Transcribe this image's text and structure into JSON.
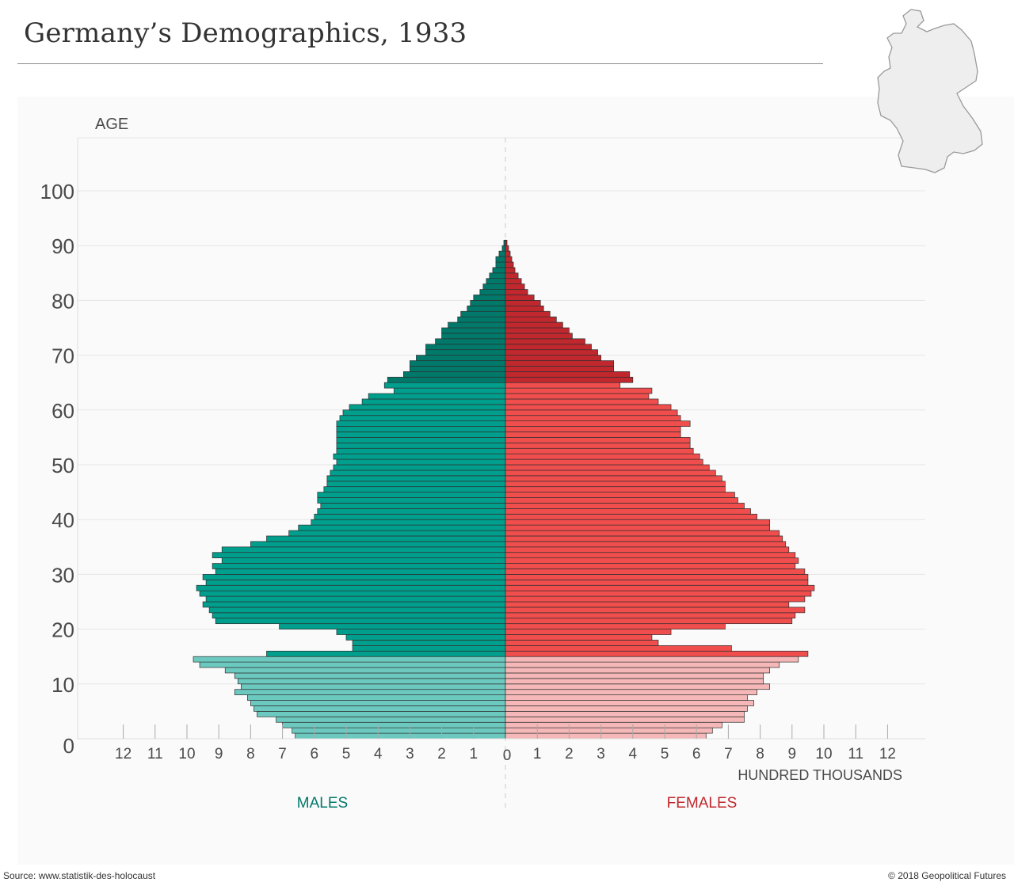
{
  "title": "Germany’s Demographics, 1933",
  "source": "Source: www.statistik-des-holocaust",
  "credit": "© 2018 Geopolitical Futures",
  "colors": {
    "male_old": "#00796b",
    "male_mid": "#009e8c",
    "male_young": "#6cc9bf",
    "female_old": "#c0282e",
    "female_mid": "#f04d4d",
    "female_young": "#f5b7b7",
    "map_fill": "#eeeeee",
    "map_stroke": "#9a9a9a"
  },
  "icons": {
    "map": "germany-outline-icon"
  },
  "chart_data": {
    "type": "bar",
    "orientation": "horizontal-population-pyramid",
    "title": "Germany’s Demographics, 1933",
    "ylabel": "AGE",
    "xlabel": "HUNDRED THOUSANDS",
    "y_ticks": [
      0,
      10,
      20,
      30,
      40,
      50,
      60,
      70,
      80,
      90,
      100
    ],
    "x_ticks_male": [
      12,
      11,
      10,
      9,
      8,
      7,
      6,
      5,
      4,
      3,
      2,
      1
    ],
    "x_ticks_female": [
      0,
      1,
      2,
      3,
      4,
      5,
      6,
      7,
      8,
      9,
      10,
      11,
      12
    ],
    "xlim": [
      0,
      12
    ],
    "ylim": [
      0,
      100
    ],
    "grid": true,
    "series": [
      {
        "name": "MALES",
        "values": [
          6.6,
          6.7,
          7.0,
          7.2,
          7.8,
          7.9,
          8.0,
          8.1,
          8.5,
          8.3,
          8.4,
          8.5,
          8.8,
          9.6,
          9.8,
          7.5,
          4.8,
          4.8,
          5.0,
          5.3,
          7.1,
          9.1,
          9.2,
          9.3,
          9.5,
          9.4,
          9.6,
          9.7,
          9.4,
          9.5,
          9.1,
          9.2,
          8.9,
          9.2,
          8.9,
          8.0,
          7.5,
          6.8,
          6.5,
          6.1,
          6.0,
          5.9,
          5.8,
          5.9,
          5.9,
          5.7,
          5.6,
          5.6,
          5.5,
          5.4,
          5.3,
          5.4,
          5.3,
          5.3,
          5.3,
          5.3,
          5.3,
          5.3,
          5.2,
          5.1,
          4.9,
          4.5,
          4.3,
          3.5,
          3.8,
          3.7,
          3.2,
          3.0,
          3.0,
          2.8,
          2.5,
          2.5,
          2.2,
          2.0,
          2.0,
          1.8,
          1.5,
          1.4,
          1.2,
          1.1,
          1.0,
          0.8,
          0.7,
          0.6,
          0.5,
          0.4,
          0.3,
          0.3,
          0.2,
          0.1,
          0.05
        ]
      },
      {
        "name": "FEMALES",
        "values": [
          6.3,
          6.5,
          6.8,
          7.5,
          7.5,
          7.6,
          7.8,
          7.6,
          7.9,
          8.3,
          8.1,
          8.1,
          8.3,
          8.6,
          9.2,
          9.5,
          7.1,
          4.8,
          4.6,
          5.2,
          6.9,
          9.0,
          9.1,
          9.4,
          8.9,
          9.4,
          9.6,
          9.7,
          9.5,
          9.5,
          9.4,
          9.1,
          9.2,
          9.1,
          8.9,
          8.8,
          8.7,
          8.6,
          8.3,
          8.3,
          7.9,
          7.7,
          7.5,
          7.3,
          7.2,
          6.9,
          6.9,
          6.8,
          6.6,
          6.4,
          6.2,
          6.1,
          5.9,
          5.8,
          5.8,
          5.5,
          5.5,
          5.8,
          5.5,
          5.4,
          5.2,
          4.8,
          4.5,
          4.6,
          3.6,
          4.0,
          3.9,
          3.4,
          3.4,
          3.0,
          2.9,
          2.7,
          2.5,
          2.1,
          2.0,
          1.8,
          1.6,
          1.4,
          1.2,
          1.1,
          0.9,
          0.7,
          0.6,
          0.5,
          0.4,
          0.3,
          0.25,
          0.2,
          0.15,
          0.1,
          0.05
        ]
      }
    ],
    "legend": [
      "MALES",
      "FEMALES"
    ]
  }
}
